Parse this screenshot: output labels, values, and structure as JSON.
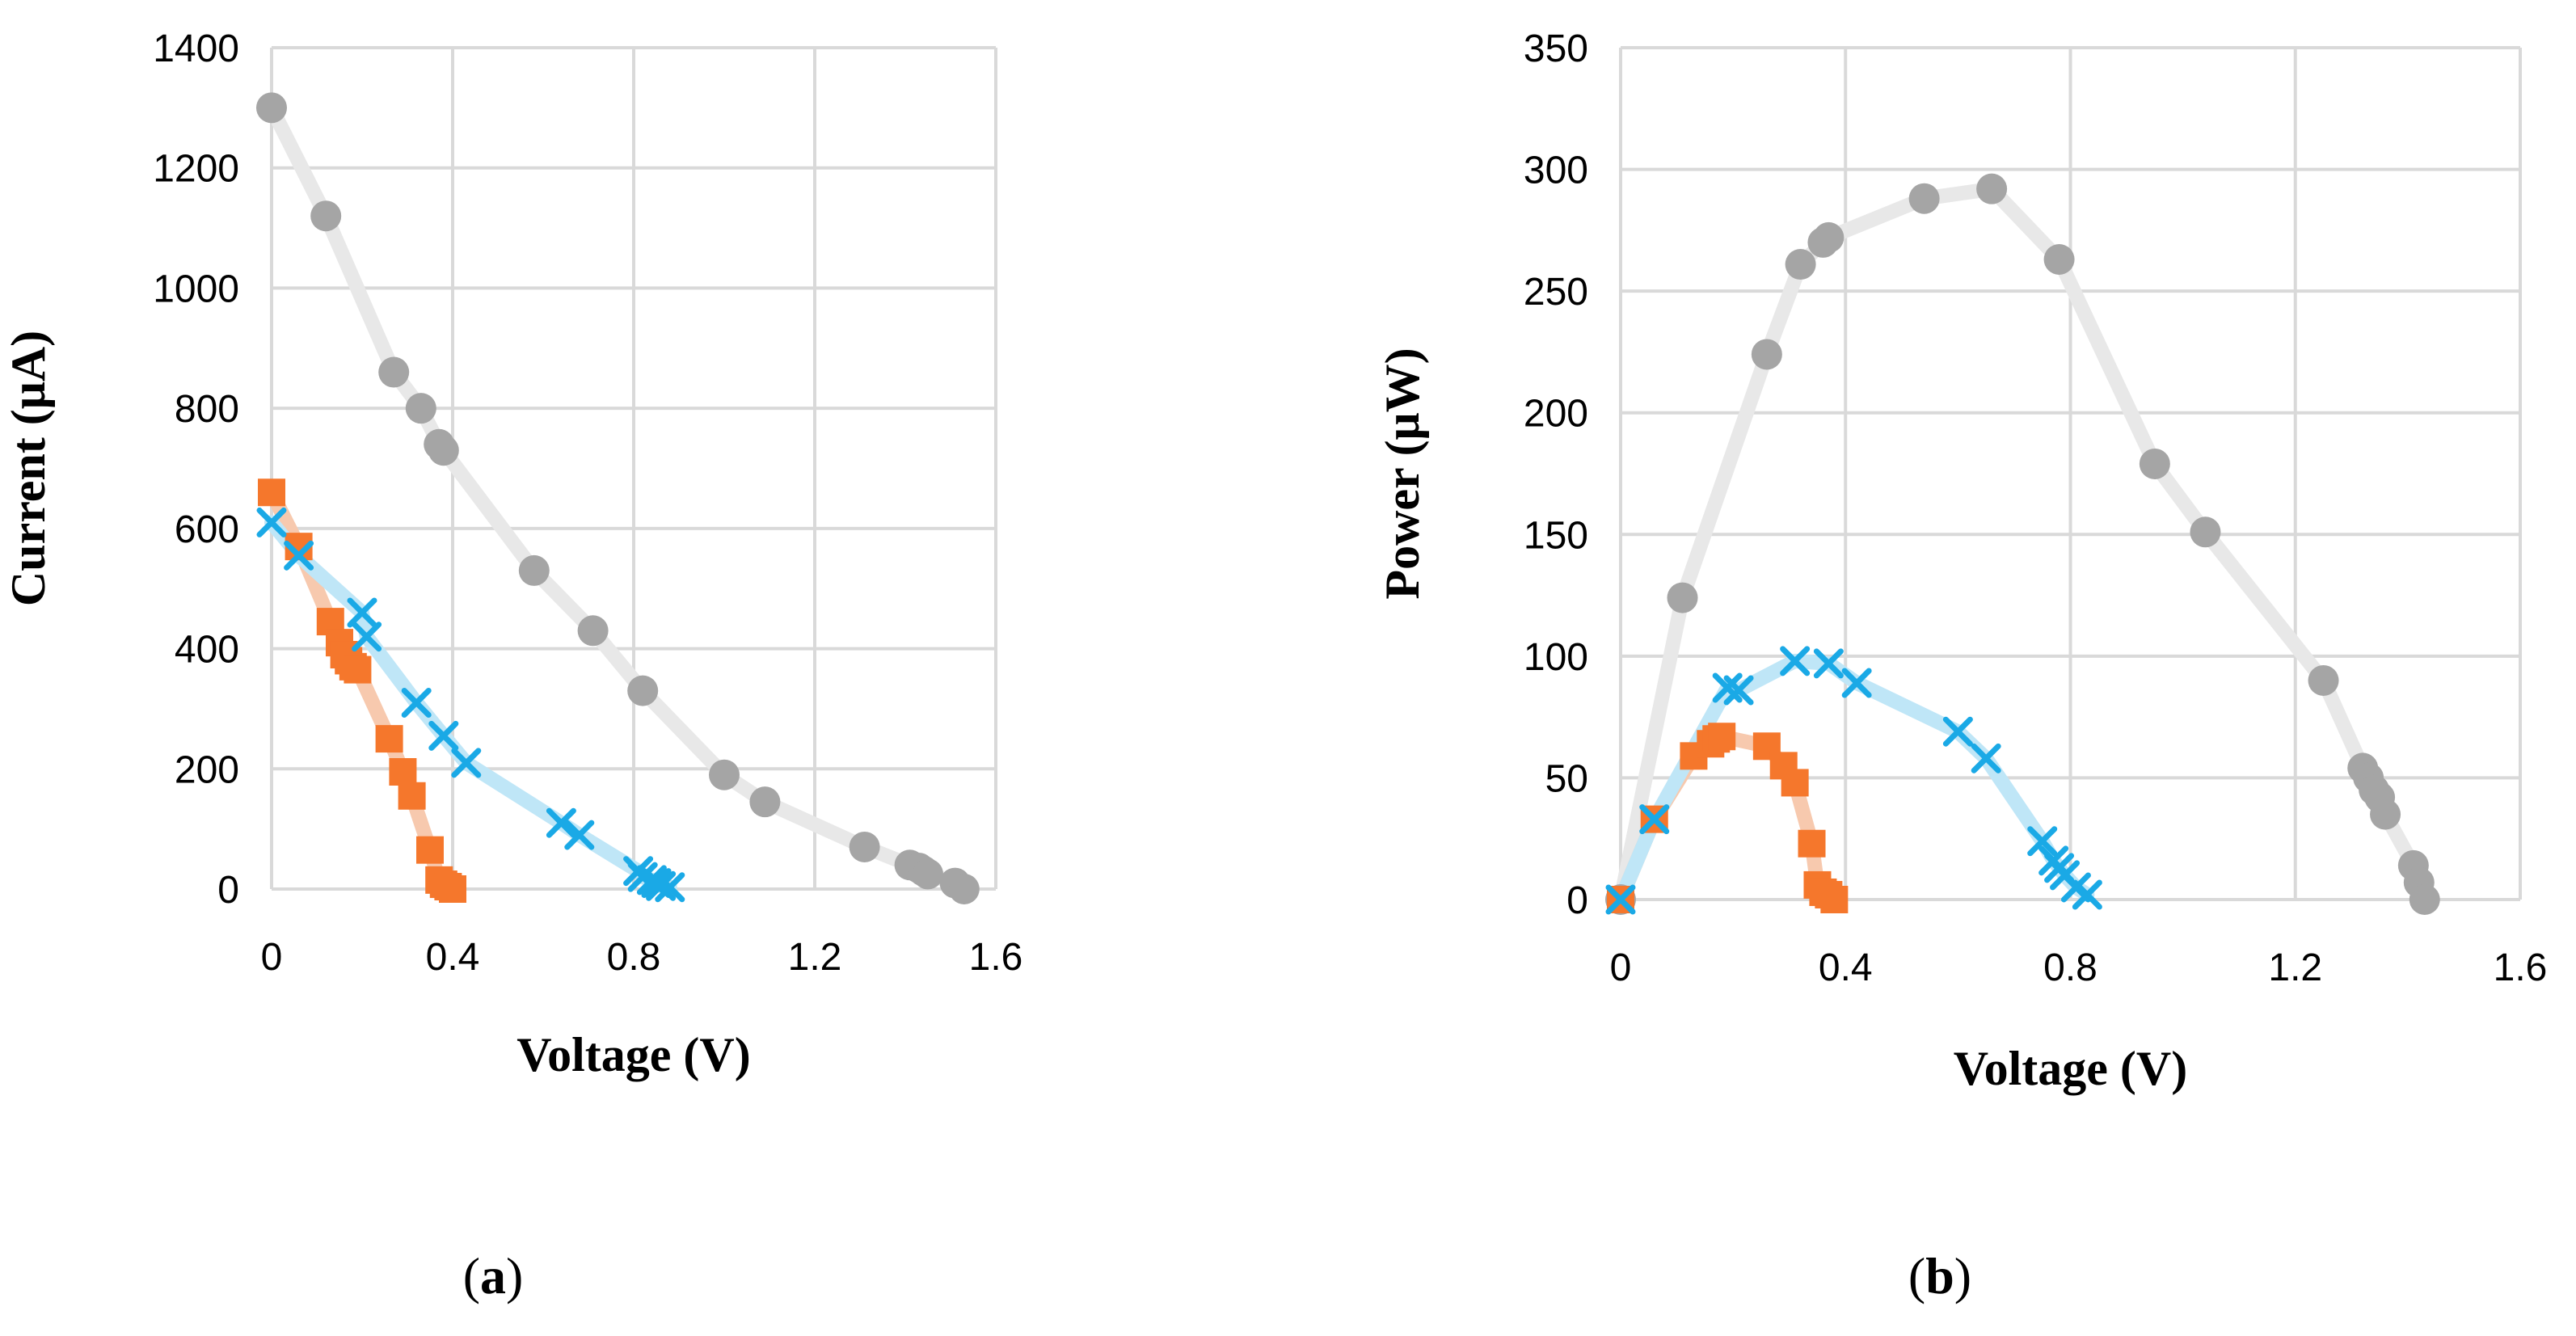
{
  "chart_data": [
    {
      "type": "scatter",
      "panel": "(a)",
      "panel_letter": "a",
      "xlabel": "Voltage (V)",
      "ylabel": "Current (μA)",
      "xlim": [
        0,
        1.6
      ],
      "ylim": [
        0,
        1400
      ],
      "xticks": [
        "0",
        "0.4",
        "0.8",
        "1.2",
        "1.6"
      ],
      "yticks": [
        "0",
        "200",
        "400",
        "600",
        "800",
        "1000",
        "1200",
        "1400"
      ],
      "grid": true,
      "series": [
        {
          "name": "gray-circles",
          "color": "#a5a5a5",
          "line_color": "#e8e8e8",
          "marker": "circle",
          "x": [
            0.0,
            0.12,
            0.27,
            0.33,
            0.37,
            0.38,
            0.58,
            0.71,
            0.82,
            1.0,
            1.09,
            1.31,
            1.41,
            1.43,
            1.44,
            1.45,
            1.51,
            1.53
          ],
          "y": [
            1300,
            1120,
            860,
            800,
            740,
            730,
            530,
            430,
            330,
            190,
            145,
            70,
            40,
            35,
            30,
            25,
            10,
            0
          ]
        },
        {
          "name": "orange-squares",
          "color": "#f5772c",
          "line_color": "#f7c9ae",
          "marker": "square",
          "x": [
            0.0,
            0.06,
            0.13,
            0.15,
            0.16,
            0.17,
            0.18,
            0.19,
            0.26,
            0.29,
            0.31,
            0.35,
            0.37,
            0.38,
            0.39,
            0.4
          ],
          "y": [
            660,
            570,
            445,
            410,
            390,
            380,
            370,
            365,
            250,
            195,
            155,
            65,
            15,
            8,
            4,
            0
          ]
        },
        {
          "name": "blue-crosses",
          "color": "#1aa9e6",
          "line_color": "#bfe6f7",
          "marker": "cross",
          "x": [
            0.0,
            0.06,
            0.2,
            0.21,
            0.32,
            0.38,
            0.43,
            0.64,
            0.68,
            0.81,
            0.82,
            0.84,
            0.85,
            0.86,
            0.88
          ],
          "y": [
            610,
            555,
            460,
            420,
            310,
            255,
            210,
            110,
            90,
            30,
            20,
            15,
            10,
            5,
            3
          ]
        }
      ]
    },
    {
      "type": "scatter",
      "panel": "(b)",
      "panel_letter": "b",
      "xlabel": "Voltage (V)",
      "ylabel": "Power (μW)",
      "xlim": [
        0,
        1.6
      ],
      "ylim": [
        0,
        350
      ],
      "xticks": [
        "0",
        "0.4",
        "0.8",
        "1.2",
        "1.6"
      ],
      "yticks": [
        "0",
        "50",
        "100",
        "150",
        "200",
        "250",
        "300",
        "350"
      ],
      "grid": true,
      "series": [
        {
          "name": "gray-circles",
          "color": "#a5a5a5",
          "line_color": "#e8e8e8",
          "marker": "circle",
          "x": [
            0.0,
            0.11,
            0.26,
            0.32,
            0.36,
            0.37,
            0.54,
            0.66,
            0.78,
            0.95,
            1.04,
            1.25,
            1.32,
            1.33,
            1.34,
            1.35,
            1.36,
            1.41,
            1.42,
            1.43
          ],
          "y": [
            0,
            124,
            224,
            261,
            270,
            272,
            288,
            292,
            263,
            179,
            151,
            90,
            54,
            50,
            45,
            42,
            35,
            14,
            7,
            0
          ]
        },
        {
          "name": "orange-squares",
          "color": "#f5772c",
          "line_color": "#f7c9ae",
          "marker": "square",
          "x": [
            0.0,
            0.06,
            0.13,
            0.16,
            0.17,
            0.18,
            0.26,
            0.29,
            0.31,
            0.34,
            0.35,
            0.36,
            0.37,
            0.38
          ],
          "y": [
            0,
            33,
            59,
            64,
            66,
            67,
            63,
            55,
            48,
            23,
            6,
            3,
            2,
            0
          ]
        },
        {
          "name": "blue-crosses",
          "color": "#1aa9e6",
          "line_color": "#bfe6f7",
          "marker": "cross",
          "x": [
            0.0,
            0.06,
            0.19,
            0.21,
            0.31,
            0.37,
            0.42,
            0.6,
            0.65,
            0.75,
            0.77,
            0.78,
            0.79,
            0.81,
            0.83
          ],
          "y": [
            0,
            33,
            87,
            86,
            98,
            97,
            89,
            69,
            58,
            24,
            16,
            13,
            10,
            5,
            2
          ]
        }
      ]
    }
  ]
}
